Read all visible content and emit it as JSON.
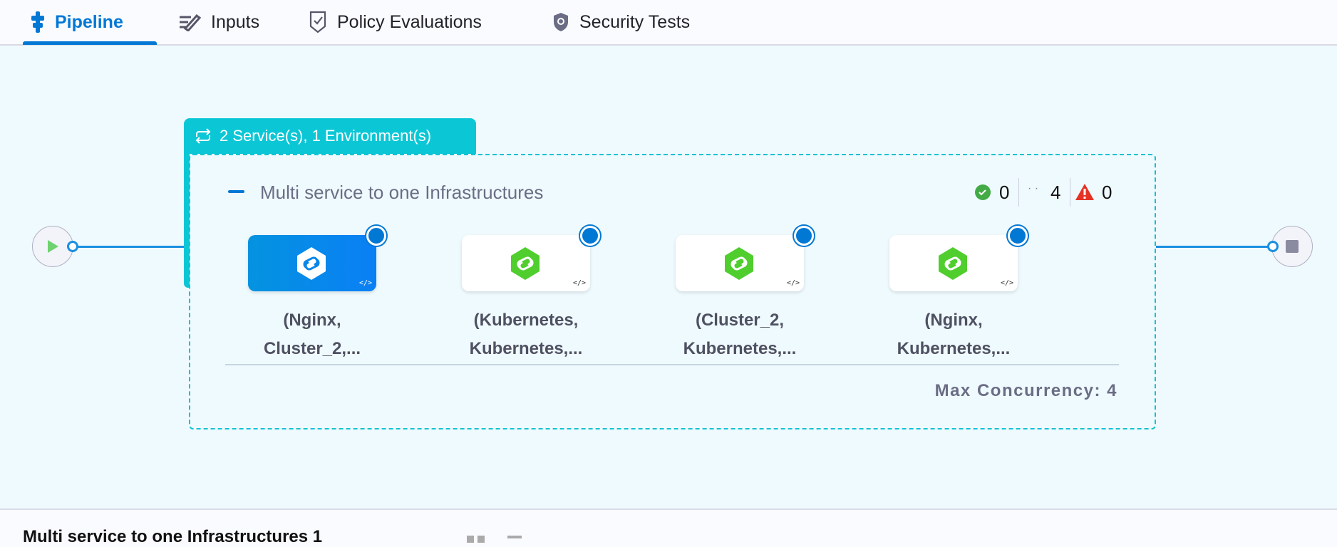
{
  "tabs": [
    {
      "label": "Pipeline",
      "icon": "pipeline-icon",
      "active": true
    },
    {
      "label": "Inputs",
      "icon": "inputs-icon"
    },
    {
      "label": "Policy Evaluations",
      "icon": "policy-icon"
    },
    {
      "label": "Security Tests",
      "icon": "shield-icon"
    }
  ],
  "group": {
    "label": "2 Service(s), 1 Environment(s)",
    "title": "Multi service to one Infrastructures",
    "stats": {
      "success": "0",
      "pending": "4",
      "failed": "0"
    },
    "nodes": [
      {
        "line1": "(Nginx,",
        "line2": "Cluster_2,...",
        "selected": true
      },
      {
        "line1": "(Kubernetes,",
        "line2": "Kubernetes,..."
      },
      {
        "line1": "(Cluster_2,",
        "line2": "Kubernetes,..."
      },
      {
        "line1": "(Nginx,",
        "line2": "Kubernetes,..."
      }
    ],
    "max_concurrency": "Max Concurrency: 4"
  },
  "bottom_panel": {
    "title": "Multi service to one Infrastructures 1"
  },
  "colors": {
    "accent": "#0278d5",
    "group": "#0bc7d6",
    "success": "#42ab45",
    "warning": "#e43326"
  }
}
